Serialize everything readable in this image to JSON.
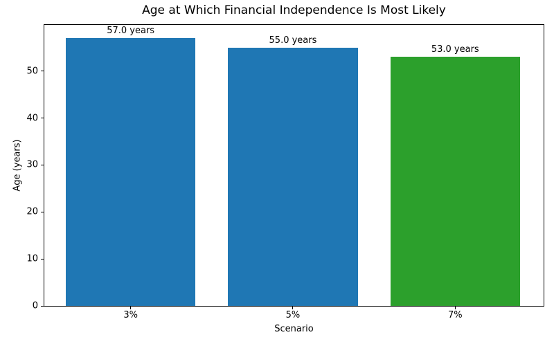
{
  "chart_data": {
    "type": "bar",
    "title": "Age at Which Financial Independence Is Most Likely",
    "xlabel": "Scenario",
    "ylabel": "Age (years)",
    "categories": [
      "3%",
      "5%",
      "7%"
    ],
    "values": [
      57.0,
      55.0,
      53.0
    ],
    "bar_labels": [
      "57.0 years",
      "55.0 years",
      "53.0 years"
    ],
    "bar_colors": [
      "#1f77b4",
      "#1f77b4",
      "#2ca02c"
    ],
    "ylim": [
      0,
      59.85
    ],
    "yticks": [
      0,
      10,
      20,
      30,
      40,
      50
    ],
    "grid": false,
    "legend": null,
    "spine_color": "#000000",
    "background_color": "#ffffff"
  }
}
